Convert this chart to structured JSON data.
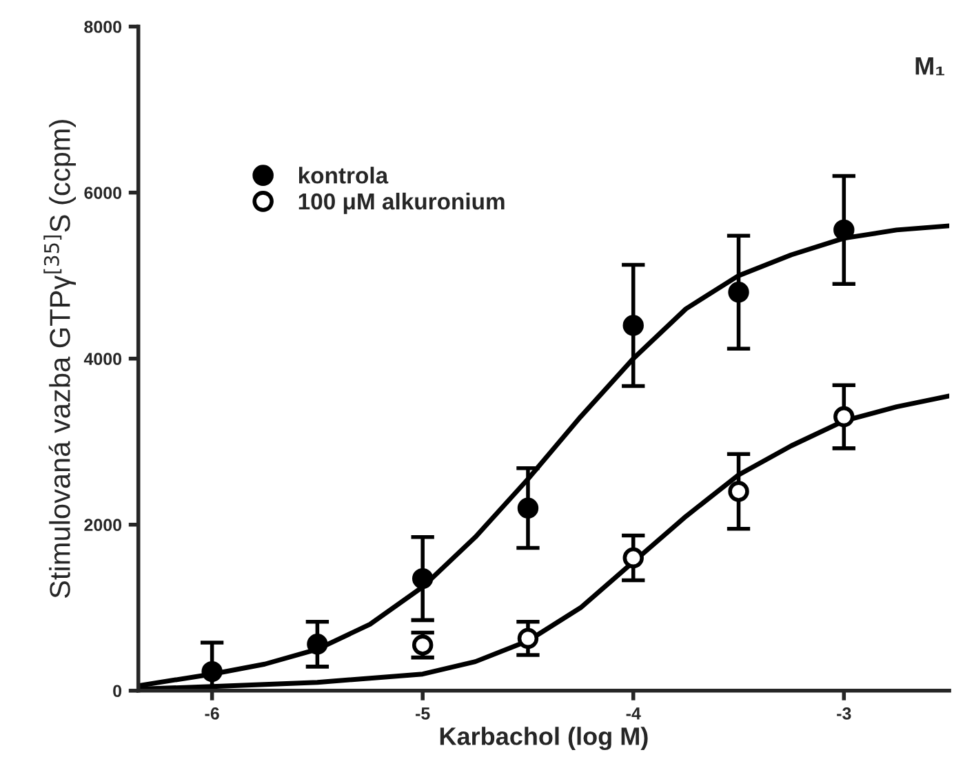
{
  "chart_data": {
    "type": "scatter",
    "xlabel": "Karbachol (log M)",
    "ylabel": "Stimulovaná vazba GTPγ$^{[35]}$S (ccpm)",
    "annotations": [
      "M₁"
    ],
    "xlim": [
      -6.35,
      -2.5
    ],
    "xticks": [
      -6,
      -5,
      -4,
      -3
    ],
    "ylim": [
      0,
      8000
    ],
    "yticks": [
      0,
      2000,
      4000,
      6000,
      8000
    ],
    "grid": false,
    "legend": "top left",
    "series": [
      {
        "name": "kontrola",
        "marker": "circle",
        "color": "#000000",
        "x": [
          -6,
          -5.5,
          -5,
          -4.5,
          -4,
          -3.5,
          -3
        ],
        "values": [
          230,
          560,
          1350,
          2200,
          4400,
          4800,
          5550
        ],
        "errors": [
          350,
          270,
          500,
          480,
          730,
          680,
          650
        ]
      },
      {
        "name": "100 μM alkuronium",
        "marker": "circle",
        "color": "#000000",
        "x": [
          -5,
          -4.5,
          -4,
          -3.5,
          -3
        ],
        "values": [
          550,
          630,
          1600,
          2400,
          3300
        ],
        "errors": [
          150,
          200,
          270,
          450,
          380
        ]
      },
      {
        "type": "line",
        "color": "#000000",
        "marker": "none",
        "x": [
          -6.35,
          -6,
          -5.75,
          -5.5,
          -5.25,
          -5,
          -4.75,
          -4.5,
          -4.25,
          -4,
          -3.75,
          -3.5,
          -3.25,
          -3,
          -2.75,
          -2.5
        ],
        "values": [
          60,
          200,
          320,
          500,
          800,
          1250,
          1850,
          2550,
          3300,
          4000,
          4600,
          5000,
          5250,
          5450,
          5550,
          5600
        ]
      },
      {
        "type": "line",
        "color": "#000000",
        "marker": "none",
        "x": [
          -6.35,
          -6,
          -5.5,
          -5,
          -4.75,
          -4.5,
          -4.25,
          -4,
          -3.75,
          -3.5,
          -3.25,
          -3,
          -2.75,
          -2.5
        ],
        "values": [
          20,
          50,
          100,
          200,
          350,
          600,
          1000,
          1550,
          2100,
          2600,
          2950,
          3250,
          3420,
          3550
        ]
      }
    ]
  }
}
